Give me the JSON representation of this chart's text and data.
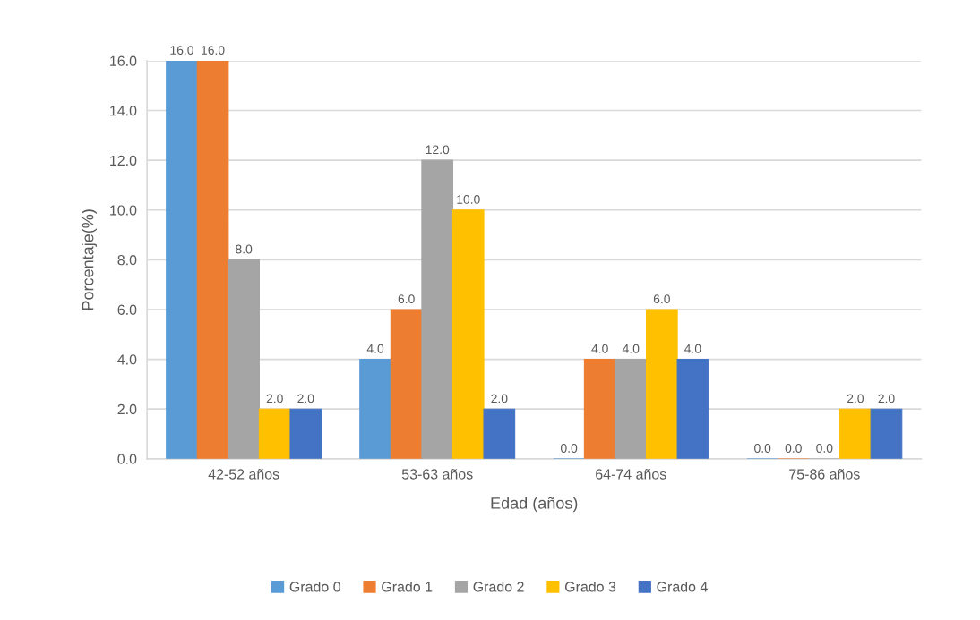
{
  "chart_data": {
    "type": "bar",
    "xlabel": "Edad (años)",
    "ylabel": "Porcentaje(%)",
    "categories": [
      "42-52 años",
      "53-63 años",
      "64-74 años",
      "75-86 años"
    ],
    "ylim": [
      0,
      16
    ],
    "yticks": [
      {
        "value": 0,
        "label": "0.0"
      },
      {
        "value": 2,
        "label": "2.0"
      },
      {
        "value": 4,
        "label": "4.0"
      },
      {
        "value": 6,
        "label": "6.0"
      },
      {
        "value": 8,
        "label": "8.0"
      },
      {
        "value": 10,
        "label": "10.0"
      },
      {
        "value": 12,
        "label": "12.0"
      },
      {
        "value": 14,
        "label": "14.0"
      },
      {
        "value": 16,
        "label": "16.0"
      }
    ],
    "grid": "y",
    "legend": "bottom",
    "series": [
      {
        "name": "Grado 0",
        "color": "#5b9bd5",
        "values": [
          16,
          4,
          0,
          0
        ],
        "value_labels": [
          "16.0",
          "4.0",
          "0.0",
          "0.0"
        ]
      },
      {
        "name": "Grado 1",
        "color": "#ed7d31",
        "values": [
          16,
          6,
          4,
          0
        ],
        "value_labels": [
          "16.0",
          "6.0",
          "4.0",
          "0.0"
        ]
      },
      {
        "name": "Grado 2",
        "color": "#a5a5a5",
        "values": [
          8,
          12,
          4,
          0
        ],
        "value_labels": [
          "8.0",
          "12.0",
          "4.0",
          "0.0"
        ]
      },
      {
        "name": "Grado 3",
        "color": "#ffc000",
        "values": [
          2,
          10,
          6,
          2
        ],
        "value_labels": [
          "2.0",
          "10.0",
          "6.0",
          "2.0"
        ]
      },
      {
        "name": "Grado 4",
        "color": "#4472c4",
        "values": [
          2,
          2,
          4,
          2
        ],
        "value_labels": [
          "2.0",
          "2.0",
          "4.0",
          "2.0"
        ]
      }
    ]
  }
}
